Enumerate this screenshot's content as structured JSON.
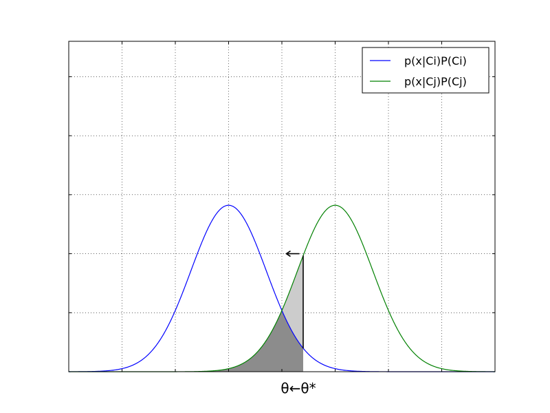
{
  "chart_data": {
    "type": "line",
    "title": "",
    "xlabel": "θ←θ*",
    "ylabel": "",
    "xlim": [
      -3,
      5
    ],
    "ylim": [
      0,
      0.56
    ],
    "grid": true,
    "grid_x": [
      -2,
      -1,
      0,
      1,
      2,
      3,
      4
    ],
    "grid_y": [
      0.1,
      0.2,
      0.3,
      0.4,
      0.5
    ],
    "tick_labels_shown": false,
    "legend_position": "top-right",
    "series": [
      {
        "name": "p(x|Ci)P(Ci)",
        "color": "#0000ff",
        "mean": 0,
        "sd": 0.7071,
        "weight": 0.5
      },
      {
        "name": "p(x|Cj)P(Cj)",
        "color": "#008000",
        "mean": 2,
        "sd": 0.7071,
        "weight": 0.5
      }
    ],
    "shaded_regions": [
      {
        "name": "bayes-error-region",
        "color": "#8c8c8c",
        "x_from": -3,
        "x_to": 1.4,
        "fill": "min-of-curves"
      },
      {
        "name": "added-error-region",
        "color": "#cccccc",
        "x_from": 1.0,
        "x_to": 1.4,
        "fill": "between-curves"
      }
    ],
    "threshold_line": {
      "x": 1.4,
      "color": "#000000"
    },
    "arrow": {
      "direction": "left",
      "symbol": "←",
      "x": 1.2,
      "y": 0.2
    }
  }
}
